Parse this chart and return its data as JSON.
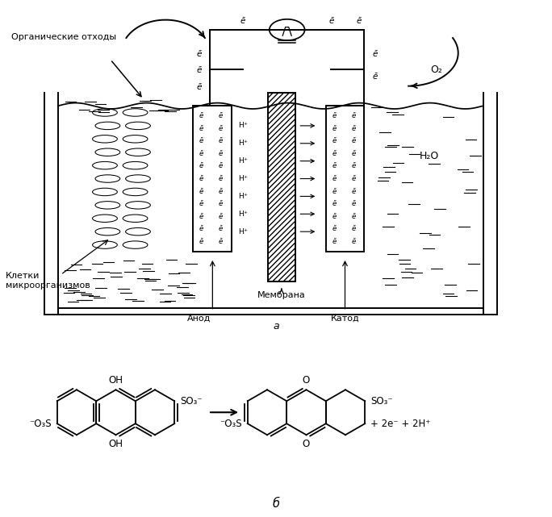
{
  "bg_color": "#ffffff",
  "text_color": "#000000",
  "label_organic": "Органические отходы",
  "label_cells": "Клетки\nмикроорганизмов",
  "label_anode": "Анод",
  "label_membrane": "Мембрана",
  "label_cathode": "Катод",
  "label_a": "а",
  "label_b": "б",
  "label_o2": "O₂",
  "label_h2o": "H₂O",
  "label_reaction": "+ 2e⁻ + 2H⁺",
  "e_bar": "е̄",
  "H_plus": "H⁺",
  "OH_label": "OH",
  "SO3_label": "SO₃⁻",
  "O3S_label": "⁻O₃S",
  "O_label": "O"
}
